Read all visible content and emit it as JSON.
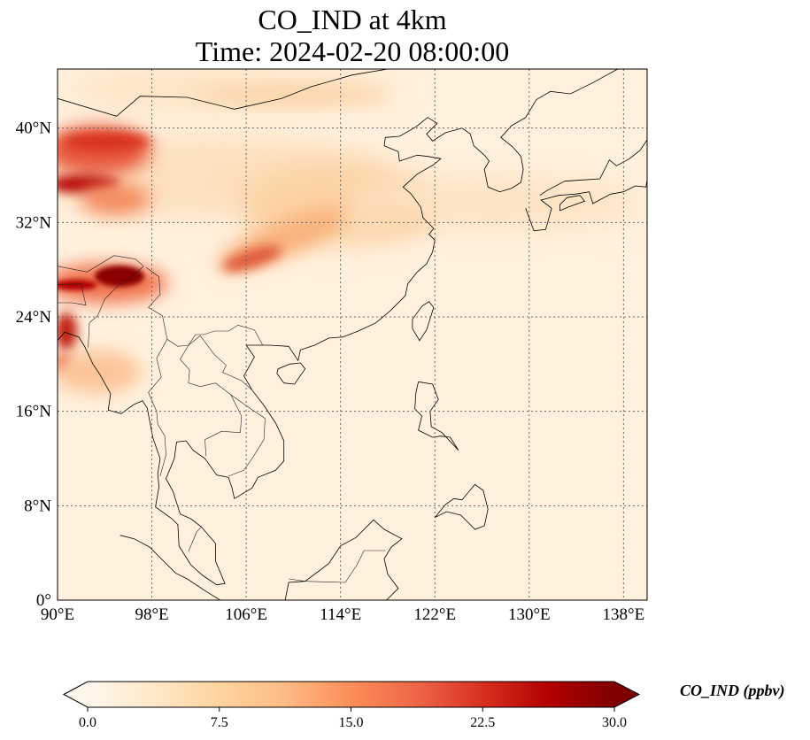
{
  "title": {
    "line1": "CO_IND at 4km",
    "line2": "Time: 2024-02-20 08:00:00"
  },
  "map": {
    "extent": {
      "lon_min": 90,
      "lon_max": 140,
      "lat_min": 0,
      "lat_max": 45
    },
    "lon_ticks": [
      90,
      98,
      106,
      114,
      122,
      130,
      138
    ],
    "lon_tick_labels": [
      "90°E",
      "98°E",
      "106°E",
      "114°E",
      "122°E",
      "130°E",
      "138°E"
    ],
    "lat_ticks": [
      0,
      8,
      16,
      24,
      32,
      40
    ],
    "lat_tick_labels": [
      "0°",
      "8°N",
      "16°N",
      "24°N",
      "32°N",
      "40°N"
    ],
    "gridlines": "dotted",
    "background_value_ppbv": 1.5
  },
  "colorbar": {
    "label": "CO_IND (ppbv)",
    "min": 0,
    "max": 30,
    "ticks": [
      0,
      7.5,
      15,
      22.5,
      30
    ],
    "tick_labels": [
      "0.0",
      "7.5",
      "15.0",
      "22.5",
      "30.0"
    ],
    "extend": "both",
    "colormap": "OrRd",
    "colors": [
      "#fff7ec",
      "#fee8c8",
      "#fdd49e",
      "#fdbb84",
      "#fc8d59",
      "#ef6548",
      "#d7301f",
      "#b30000",
      "#7f0000"
    ]
  }
}
